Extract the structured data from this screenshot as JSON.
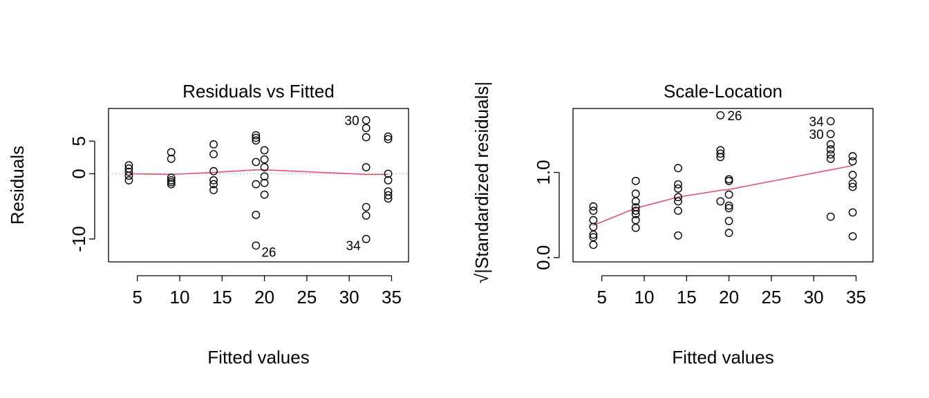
{
  "colors": {
    "point": "#000000",
    "smoother": "#DF536B",
    "reference": "#BEBEBE",
    "axis": "#000000"
  },
  "chart_data": [
    {
      "type": "scatter",
      "title": "Residuals vs Fitted",
      "xlabel": "Fitted values",
      "ylabel": "Residuals",
      "xlim": [
        1.6,
        37.0
      ],
      "ylim": [
        -13.5,
        10.0
      ],
      "xticks": [
        5,
        10,
        15,
        20,
        25,
        30,
        35
      ],
      "yticks": [
        -10,
        0,
        5
      ],
      "ytick_labels": [
        "-10",
        "0",
        "5"
      ],
      "grid": false,
      "points": [
        {
          "x": 4.0,
          "y": 1.3
        },
        {
          "x": 4.0,
          "y": 0.8
        },
        {
          "x": 4.0,
          "y": 0.3
        },
        {
          "x": 4.0,
          "y": -0.3
        },
        {
          "x": 4.0,
          "y": -1.0
        },
        {
          "x": 9.0,
          "y": 3.3
        },
        {
          "x": 9.0,
          "y": 2.3
        },
        {
          "x": 9.0,
          "y": -0.6
        },
        {
          "x": 9.0,
          "y": -1.0
        },
        {
          "x": 9.0,
          "y": -1.3
        },
        {
          "x": 9.0,
          "y": -1.6
        },
        {
          "x": 14.0,
          "y": 4.5
        },
        {
          "x": 14.0,
          "y": 3.0
        },
        {
          "x": 14.0,
          "y": 0.4
        },
        {
          "x": 14.0,
          "y": -1.0
        },
        {
          "x": 14.0,
          "y": -1.6
        },
        {
          "x": 14.0,
          "y": -2.5
        },
        {
          "x": 19.0,
          "y": 5.9
        },
        {
          "x": 19.0,
          "y": 5.5
        },
        {
          "x": 19.0,
          "y": 5.1
        },
        {
          "x": 19.0,
          "y": 1.8
        },
        {
          "x": 19.0,
          "y": -1.6
        },
        {
          "x": 19.0,
          "y": -6.3
        },
        {
          "x": 19.0,
          "y": -11.0
        },
        {
          "x": 20.0,
          "y": 3.6
        },
        {
          "x": 20.0,
          "y": 2.2
        },
        {
          "x": 20.0,
          "y": 1.0
        },
        {
          "x": 20.0,
          "y": -0.4
        },
        {
          "x": 20.0,
          "y": -1.4
        },
        {
          "x": 20.0,
          "y": -3.2
        },
        {
          "x": 32.0,
          "y": 8.2
        },
        {
          "x": 32.0,
          "y": 7.0
        },
        {
          "x": 32.0,
          "y": 5.6
        },
        {
          "x": 32.0,
          "y": 1.0
        },
        {
          "x": 32.0,
          "y": -5.1
        },
        {
          "x": 32.0,
          "y": -6.4
        },
        {
          "x": 32.0,
          "y": -10.0
        },
        {
          "x": 34.6,
          "y": 5.7
        },
        {
          "x": 34.6,
          "y": 5.3
        },
        {
          "x": 34.6,
          "y": 0.0
        },
        {
          "x": 34.6,
          "y": -1.0
        },
        {
          "x": 34.6,
          "y": -2.7
        },
        {
          "x": 34.6,
          "y": -3.3
        },
        {
          "x": 34.6,
          "y": -3.8
        }
      ],
      "smoother": {
        "x": [
          4.0,
          9.0,
          14.0,
          19.0,
          20.0,
          32.0,
          34.6
        ],
        "y": [
          0.0,
          -0.1,
          0.2,
          0.6,
          0.6,
          -0.1,
          -0.1
        ]
      },
      "reference_line": 0,
      "annotations": [
        {
          "label": "30",
          "x": 32.0,
          "y": 8.2,
          "side": "left"
        },
        {
          "label": "34",
          "x": 32.0,
          "y": -10.0,
          "side": "below-left"
        },
        {
          "label": "26",
          "x": 19.0,
          "y": -11.0,
          "side": "below-right"
        }
      ]
    },
    {
      "type": "scatter",
      "title": "Scale-Location",
      "xlabel": "Fitted values",
      "ylabel": "|Standardized residuals|",
      "ylabel_prefix": "√",
      "xlim": [
        1.6,
        37.0
      ],
      "ylim": [
        -0.05,
        1.75
      ],
      "xticks": [
        5,
        10,
        15,
        20,
        25,
        30,
        35
      ],
      "yticks": [
        0.0,
        1.0
      ],
      "ytick_labels": [
        "0.0",
        "1.0"
      ],
      "grid": false,
      "points": [
        {
          "x": 4.0,
          "y": 0.6
        },
        {
          "x": 4.0,
          "y": 0.55
        },
        {
          "x": 4.0,
          "y": 0.44
        },
        {
          "x": 4.0,
          "y": 0.36
        },
        {
          "x": 4.0,
          "y": 0.27
        },
        {
          "x": 4.0,
          "y": 0.24
        },
        {
          "x": 4.0,
          "y": 0.15
        },
        {
          "x": 9.0,
          "y": 0.9
        },
        {
          "x": 9.0,
          "y": 0.75
        },
        {
          "x": 9.0,
          "y": 0.66
        },
        {
          "x": 9.0,
          "y": 0.59
        },
        {
          "x": 9.0,
          "y": 0.55
        },
        {
          "x": 9.0,
          "y": 0.51
        },
        {
          "x": 9.0,
          "y": 0.44
        },
        {
          "x": 9.0,
          "y": 0.35
        },
        {
          "x": 14.0,
          "y": 1.05
        },
        {
          "x": 14.0,
          "y": 0.86
        },
        {
          "x": 14.0,
          "y": 0.81
        },
        {
          "x": 14.0,
          "y": 0.71
        },
        {
          "x": 14.0,
          "y": 0.66
        },
        {
          "x": 14.0,
          "y": 0.55
        },
        {
          "x": 14.0,
          "y": 0.26
        },
        {
          "x": 19.0,
          "y": 1.67
        },
        {
          "x": 19.0,
          "y": 1.26
        },
        {
          "x": 19.0,
          "y": 1.22
        },
        {
          "x": 19.0,
          "y": 1.18
        },
        {
          "x": 19.0,
          "y": 0.66
        },
        {
          "x": 20.0,
          "y": 0.92
        },
        {
          "x": 20.0,
          "y": 0.9
        },
        {
          "x": 20.0,
          "y": 0.74
        },
        {
          "x": 20.0,
          "y": 0.61
        },
        {
          "x": 20.0,
          "y": 0.58
        },
        {
          "x": 20.0,
          "y": 0.43
        },
        {
          "x": 20.0,
          "y": 0.29
        },
        {
          "x": 32.0,
          "y": 1.6
        },
        {
          "x": 32.0,
          "y": 1.45
        },
        {
          "x": 32.0,
          "y": 1.33
        },
        {
          "x": 32.0,
          "y": 1.27
        },
        {
          "x": 32.0,
          "y": 1.21
        },
        {
          "x": 32.0,
          "y": 1.16
        },
        {
          "x": 32.0,
          "y": 0.48
        },
        {
          "x": 34.6,
          "y": 1.19
        },
        {
          "x": 34.6,
          "y": 1.13
        },
        {
          "x": 34.6,
          "y": 0.97
        },
        {
          "x": 34.6,
          "y": 0.87
        },
        {
          "x": 34.6,
          "y": 0.83
        },
        {
          "x": 34.6,
          "y": 0.53
        },
        {
          "x": 34.6,
          "y": 0.25
        }
      ],
      "smoother": {
        "x": [
          4.0,
          9.0,
          14.0,
          19.0,
          20.0,
          32.0,
          34.6
        ],
        "y": [
          0.38,
          0.58,
          0.71,
          0.79,
          0.8,
          1.03,
          1.08
        ]
      },
      "annotations": [
        {
          "label": "26",
          "x": 19.0,
          "y": 1.67,
          "side": "right"
        },
        {
          "label": "34",
          "x": 32.0,
          "y": 1.6,
          "side": "left"
        },
        {
          "label": "30",
          "x": 32.0,
          "y": 1.45,
          "side": "left"
        }
      ]
    }
  ]
}
